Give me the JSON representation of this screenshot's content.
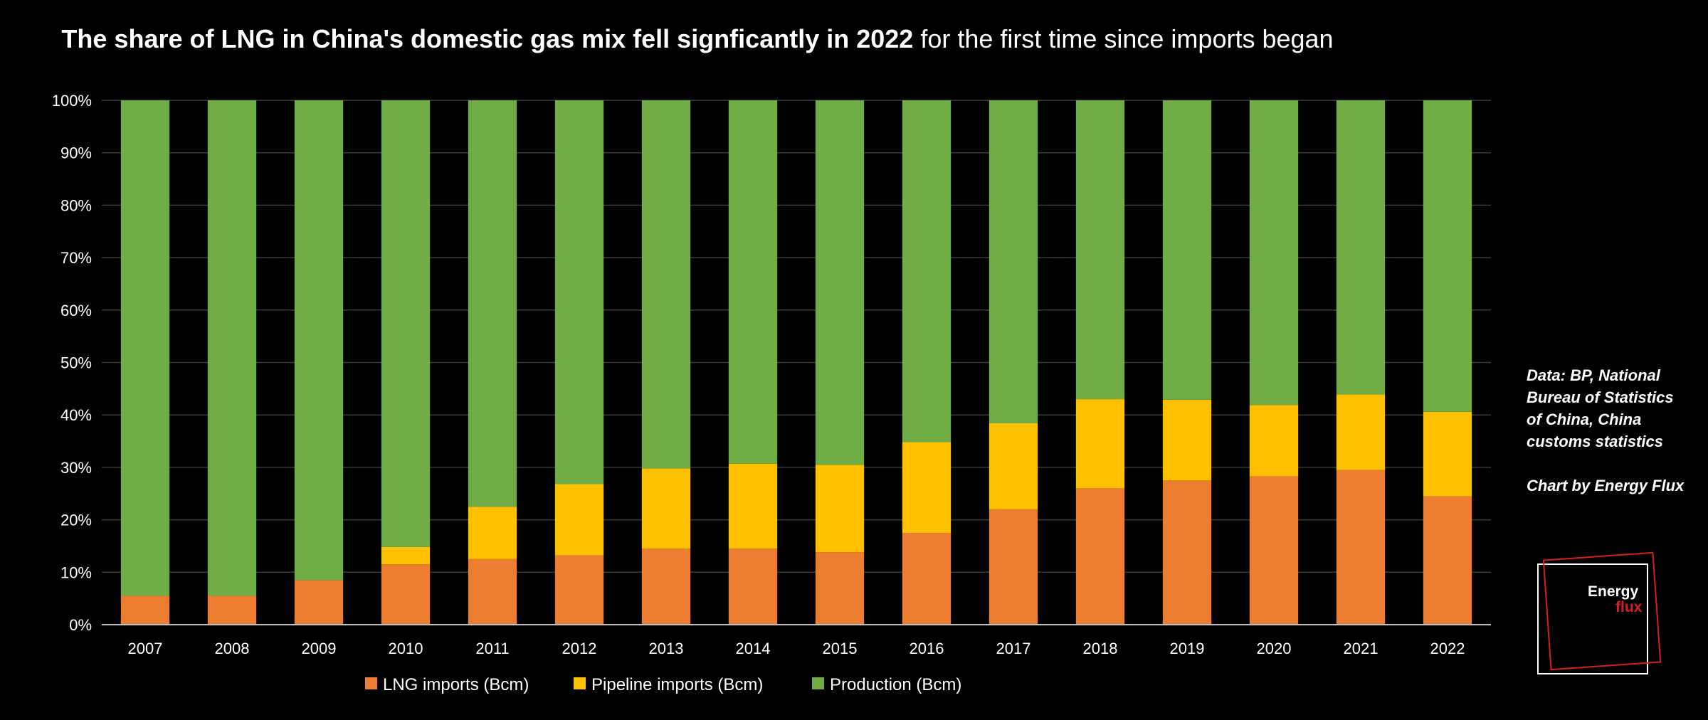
{
  "chart_data": {
    "type": "bar",
    "stacked": "percent",
    "title_bold": "The share of LNG in China's domestic gas mix fell signficantly in 2022",
    "title_regular": "for the first time since imports began",
    "categories": [
      "2007",
      "2008",
      "2009",
      "2010",
      "2011",
      "2012",
      "2013",
      "2014",
      "2015",
      "2016",
      "2017",
      "2018",
      "2019",
      "2020",
      "2021",
      "2022"
    ],
    "series": [
      {
        "name": "LNG imports (Bcm)",
        "color": "#ED7D31",
        "values": [
          5.5,
          5.5,
          8.5,
          11.5,
          12.5,
          13.2,
          14.5,
          14.5,
          13.8,
          17.5,
          22.0,
          26.0,
          27.5,
          28.3,
          29.5,
          24.5
        ]
      },
      {
        "name": "Pipeline imports (Bcm)",
        "color": "#FFC000",
        "values": [
          0,
          0,
          0,
          3.3,
          10.0,
          13.6,
          15.3,
          16.2,
          16.7,
          17.3,
          16.4,
          17.0,
          15.4,
          13.6,
          14.4,
          16.1
        ]
      },
      {
        "name": "Production (Bcm)",
        "color": "#70AD47",
        "values": [
          94.5,
          94.5,
          91.5,
          85.2,
          77.5,
          73.2,
          70.2,
          69.3,
          69.5,
          65.2,
          61.6,
          57.0,
          57.1,
          58.1,
          56.1,
          59.4
        ]
      }
    ],
    "yticks": [
      "0%",
      "10%",
      "20%",
      "30%",
      "40%",
      "50%",
      "60%",
      "70%",
      "80%",
      "90%",
      "100%"
    ],
    "ylim": [
      0,
      100
    ],
    "legend_position": "bottom",
    "grid": true
  },
  "source_note": [
    "Data: BP, National",
    "Bureau of Statistics",
    "of China, China",
    "customs statistics"
  ],
  "credit": "Chart by Energy Flux",
  "logo": {
    "word1": "Energy",
    "word2": "flux"
  }
}
